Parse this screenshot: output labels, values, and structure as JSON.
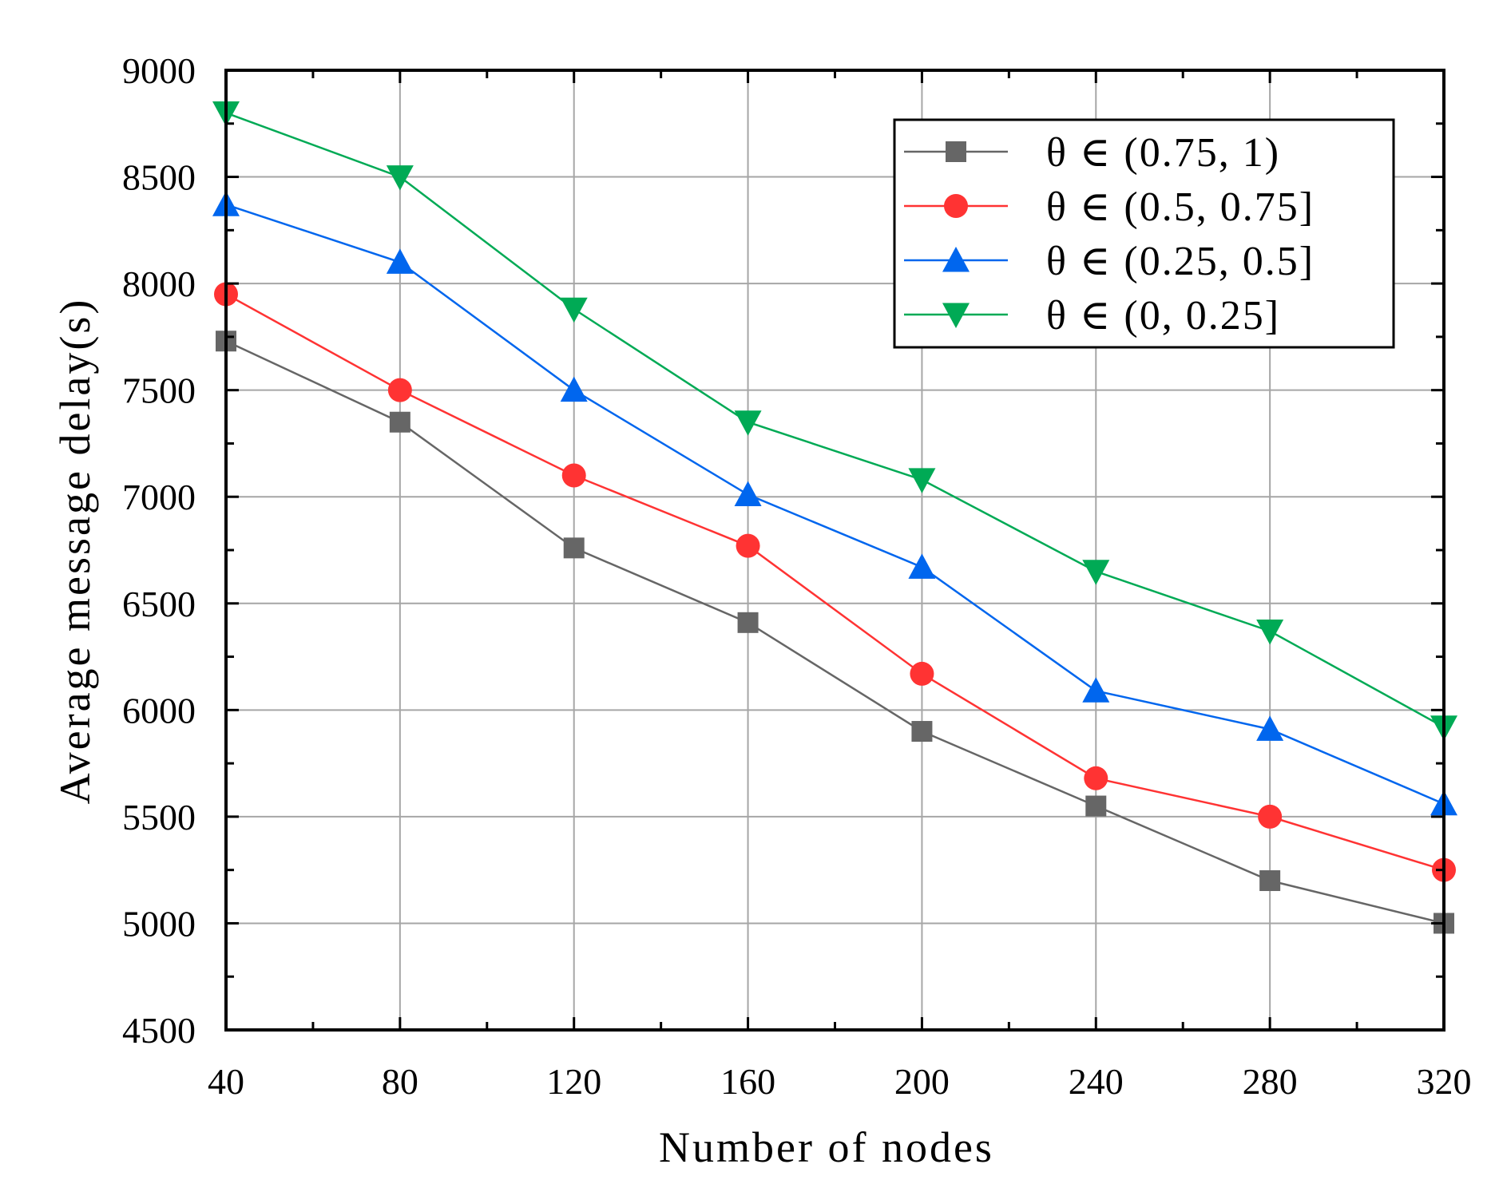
{
  "chart_data": {
    "type": "line",
    "xlabel": "Number of nodes",
    "ylabel": "Average message delay(s)",
    "x": [
      40,
      80,
      120,
      160,
      200,
      240,
      280,
      320
    ],
    "xticks": [
      "40",
      "80",
      "120",
      "160",
      "200",
      "240",
      "280",
      "320"
    ],
    "yticks": [
      "4500",
      "5000",
      "5500",
      "6000",
      "6500",
      "7000",
      "7500",
      "8000",
      "8500",
      "9000"
    ],
    "xlim": [
      40,
      320
    ],
    "ylim": [
      4500,
      9000
    ],
    "grid": true,
    "legend_position": "top-right",
    "series": [
      {
        "name": "θ ∈ (0.75, 1)",
        "color": "#666666",
        "marker": "square",
        "values": [
          7730,
          7350,
          6760,
          6410,
          5900,
          5550,
          5200,
          5000
        ]
      },
      {
        "name": "θ ∈ (0.5, 0.75]",
        "color": "#ff3333",
        "marker": "circle",
        "values": [
          7950,
          7500,
          7100,
          6770,
          6170,
          5680,
          5500,
          5250
        ]
      },
      {
        "name": "θ ∈ (0.25, 0.5]",
        "color": "#0066ee",
        "marker": "triangle-up",
        "values": [
          8370,
          8100,
          7500,
          7010,
          6670,
          6090,
          5910,
          5560
        ]
      },
      {
        "name": "θ ∈ (0, 0.25]",
        "color": "#00aa55",
        "marker": "triangle-down",
        "values": [
          8800,
          8500,
          7880,
          7350,
          7080,
          6650,
          6370,
          5920
        ]
      }
    ]
  }
}
